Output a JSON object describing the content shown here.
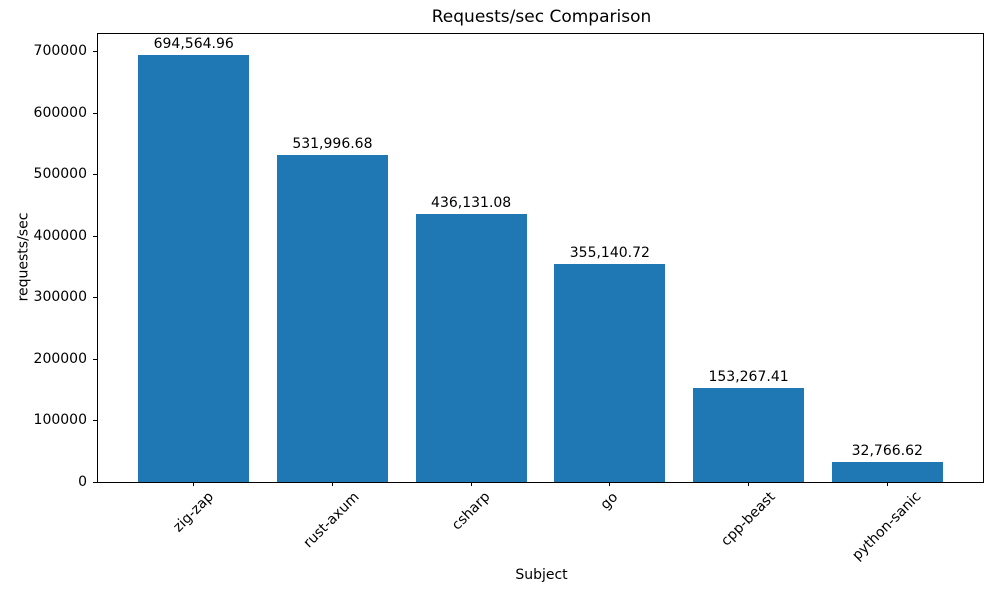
{
  "chart_data": {
    "type": "bar",
    "title": "Requests/sec Comparison",
    "xlabel": "Subject",
    "ylabel": "requests/sec",
    "categories": [
      "zig-zap",
      "rust-axum",
      "csharp",
      "go",
      "cpp-beast",
      "python-sanic"
    ],
    "values": [
      694564.96,
      531996.68,
      436131.08,
      355140.72,
      153267.41,
      32766.62
    ],
    "value_labels": [
      "694,564.96",
      "531,996.68",
      "436,131.08",
      "355,140.72",
      "153,267.41",
      "32,766.62"
    ],
    "bar_color": "#1f77b4",
    "ylim": [
      0,
      729293
    ],
    "yticks": [
      0,
      100000,
      200000,
      300000,
      400000,
      500000,
      600000,
      700000
    ],
    "ytick_labels": [
      "0",
      "100000",
      "200000",
      "300000",
      "400000",
      "500000",
      "600000",
      "700000"
    ],
    "grid": false,
    "legend": null,
    "xtick_rotation_deg": 45
  }
}
